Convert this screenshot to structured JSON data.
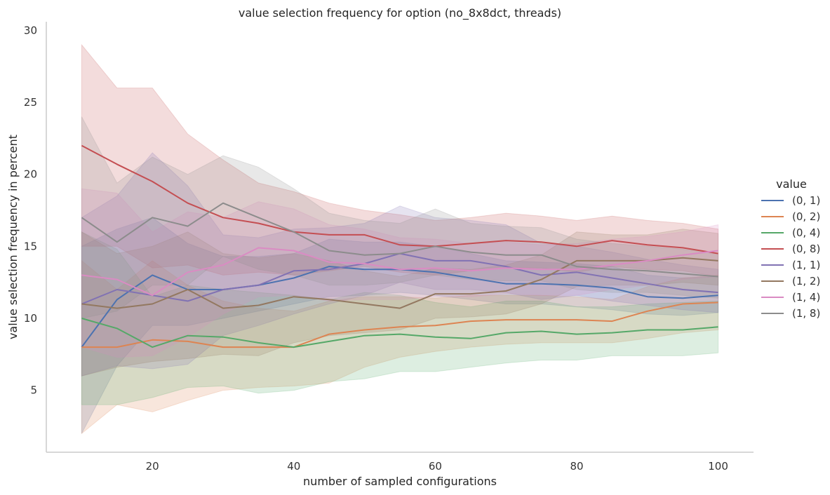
{
  "chart_data": {
    "type": "line",
    "title": "value selection frequency for option (no_8x8dct, threads)",
    "xlabel": "number of sampled configurations",
    "ylabel": "value selection frequency in percent",
    "xlim": [
      5,
      105
    ],
    "ylim": [
      0.7,
      30.6
    ],
    "xticks": [
      20,
      40,
      60,
      80,
      100
    ],
    "yticks": [
      5,
      10,
      15,
      20,
      25,
      30
    ],
    "grid": false,
    "legend": {
      "title": "value",
      "placement": "right"
    },
    "x": [
      10,
      15,
      20,
      25,
      30,
      35,
      40,
      45,
      50,
      55,
      60,
      65,
      70,
      75,
      80,
      85,
      90,
      95,
      100
    ],
    "series": [
      {
        "name": "(0, 1)",
        "color": "#4c72b0",
        "values": [
          8,
          11.3,
          13,
          12,
          12,
          12.3,
          12.8,
          13.6,
          13.4,
          13.4,
          13.2,
          12.8,
          12.4,
          12.4,
          12.3,
          12.1,
          11.5,
          11.4,
          11.6
        ],
        "lower": [
          2,
          6.7,
          9.5,
          9.5,
          10,
          10.5,
          11,
          11.5,
          11.6,
          11.8,
          11.6,
          11.3,
          11,
          11,
          10.8,
          10.6,
          10.3,
          10.2,
          10.4
        ],
        "upper": [
          15,
          16.2,
          17,
          15.2,
          14.3,
          14.3,
          14.5,
          15.5,
          15.3,
          15.3,
          15,
          14.5,
          14,
          13.9,
          13.8,
          13.6,
          13,
          12.8,
          12.9
        ]
      },
      {
        "name": "(0, 2)",
        "color": "#dd8452",
        "values": [
          8,
          8,
          8.5,
          8.4,
          8,
          8,
          8,
          8.9,
          9.2,
          9.4,
          9.5,
          9.8,
          9.9,
          9.9,
          9.9,
          9.8,
          10.5,
          11,
          11.1
        ],
        "lower": [
          2,
          4,
          3.5,
          4.3,
          5,
          5.2,
          5.3,
          5.5,
          6.6,
          7.3,
          7.7,
          8,
          8.2,
          8.3,
          8.3,
          8.3,
          8.6,
          9,
          9.2
        ],
        "upper": [
          14,
          12,
          14,
          12.3,
          11.2,
          10.7,
          10.5,
          11.2,
          11.5,
          11.5,
          11.4,
          11.6,
          11.6,
          11.6,
          11.5,
          11.3,
          12.2,
          12.8,
          13
        ]
      },
      {
        "name": "(0, 4)",
        "color": "#55a868",
        "values": [
          10,
          9.3,
          8,
          8.8,
          8.7,
          8.3,
          8,
          8.4,
          8.8,
          8.9,
          8.7,
          8.6,
          9,
          9.1,
          8.9,
          9,
          9.2,
          9.2,
          9.4
        ],
        "lower": [
          4,
          4,
          4.5,
          5.2,
          5.3,
          4.8,
          5,
          5.6,
          5.8,
          6.3,
          6.3,
          6.6,
          6.9,
          7.1,
          7.1,
          7.4,
          7.4,
          7.4,
          7.6
        ],
        "upper": [
          16,
          14.8,
          11.5,
          12.3,
          12,
          11.8,
          11.6,
          11.3,
          11.8,
          11.6,
          11.1,
          10.8,
          11.2,
          11.2,
          10.8,
          10.8,
          11,
          11.1,
          11.2
        ]
      },
      {
        "name": "(0, 8)",
        "color": "#c44e52",
        "values": [
          22,
          20.7,
          19.5,
          18,
          17,
          16.6,
          16,
          15.8,
          15.8,
          15.1,
          15,
          15.2,
          15.4,
          15.3,
          15,
          15.4,
          15.1,
          14.9,
          14.5
        ],
        "lower": [
          15,
          15,
          13.5,
          13.7,
          13,
          13.2,
          13,
          13.3,
          13.6,
          13.2,
          13,
          13.3,
          13.5,
          13.5,
          13.2,
          13.6,
          13.4,
          13.3,
          12.9
        ],
        "upper": [
          29,
          26,
          26,
          22.8,
          21,
          19.4,
          18.8,
          18,
          17.5,
          17.2,
          16.8,
          17,
          17.3,
          17.1,
          16.8,
          17.1,
          16.8,
          16.6,
          16.2
        ]
      },
      {
        "name": "(1, 1)",
        "color": "#8172b3",
        "values": [
          11,
          12,
          11.6,
          11.2,
          12,
          12.3,
          13.3,
          13.4,
          13.8,
          14.5,
          14,
          14,
          13.6,
          13,
          13.2,
          12.8,
          12.4,
          12,
          11.8
        ],
        "lower": [
          6,
          6.7,
          6.5,
          6.8,
          8.8,
          9.5,
          10.3,
          11,
          11.6,
          12.5,
          12,
          12,
          11.8,
          11.3,
          11.6,
          11.2,
          10.9,
          10.6,
          10.4
        ],
        "upper": [
          17,
          18.5,
          21.5,
          19.2,
          15.8,
          15.6,
          16.2,
          16.3,
          16.6,
          17.8,
          17,
          16.8,
          16.5,
          15.2,
          15,
          14.6,
          14.1,
          13.7,
          13.4
        ]
      },
      {
        "name": "(1, 2)",
        "color": "#937860",
        "values": [
          11,
          10.7,
          11,
          12,
          10.7,
          10.9,
          11.5,
          11.3,
          11,
          10.7,
          11.7,
          11.7,
          11.9,
          12.7,
          14,
          14,
          14,
          14.2,
          14
        ],
        "lower": [
          6,
          6.6,
          7,
          7.2,
          7.5,
          7.4,
          8.3,
          8.8,
          9,
          9.2,
          10,
          10.1,
          10.3,
          11,
          12.2,
          12.3,
          12.3,
          12.5,
          12.3
        ],
        "upper": [
          16,
          14.5,
          15,
          16,
          14.5,
          14.2,
          14.5,
          14,
          13.3,
          12.9,
          13.5,
          13.4,
          13.7,
          14.4,
          16,
          15.8,
          15.8,
          16.2,
          15.9
        ]
      },
      {
        "name": "(1, 4)",
        "color": "#da8bc3",
        "values": [
          13,
          12.7,
          11.6,
          13.2,
          13.7,
          14.9,
          14.7,
          13.9,
          13.8,
          13.4,
          13.5,
          13.3,
          13.5,
          13.4,
          13.4,
          13.7,
          14,
          14.4,
          14.7
        ],
        "lower": [
          8,
          7.3,
          7.4,
          8.7,
          10.3,
          11.5,
          11.6,
          11.2,
          11.3,
          11.3,
          11.5,
          11.5,
          11.7,
          11.6,
          11.6,
          12,
          12.3,
          12.7,
          12.9
        ],
        "upper": [
          19,
          18.7,
          16,
          17.4,
          17,
          18.1,
          17.6,
          16.5,
          16.2,
          15.6,
          15.5,
          15.2,
          15.3,
          15.1,
          15.2,
          15.5,
          15.7,
          16,
          16.5
        ]
      },
      {
        "name": "(1, 8)",
        "color": "#8c8c8c",
        "values": [
          17,
          15.3,
          17,
          16.4,
          18,
          17,
          16,
          14.7,
          14.4,
          14.5,
          15,
          14.6,
          14.4,
          14.4,
          13.6,
          13.4,
          13.3,
          13.1,
          12.9
        ],
        "lower": [
          10,
          10.5,
          12.3,
          12.3,
          14.3,
          13.4,
          13,
          12.3,
          12.3,
          12.5,
          13,
          12.7,
          12.6,
          12.6,
          12,
          11.8,
          11.8,
          11.6,
          11.4
        ],
        "upper": [
          24,
          19.4,
          21.2,
          20,
          21.3,
          20.5,
          19,
          17.3,
          16.8,
          16.6,
          17.6,
          16.6,
          16.4,
          16.3,
          15.5,
          15.2,
          15,
          14.8,
          14.5
        ]
      }
    ]
  }
}
